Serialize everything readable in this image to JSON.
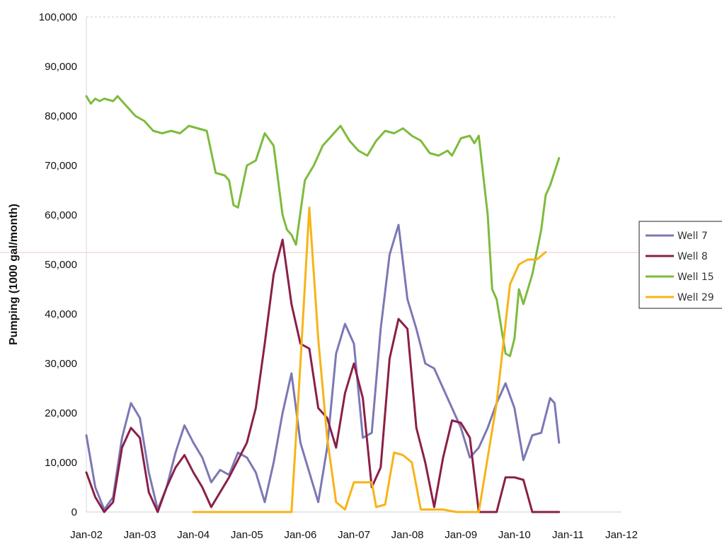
{
  "chart_data": {
    "type": "line",
    "ylabel": "Pumping (1000 gal/month)",
    "xlabel": "",
    "ylim": [
      0,
      100000
    ],
    "yticks": [
      0,
      10000,
      20000,
      30000,
      40000,
      50000,
      60000,
      70000,
      80000,
      90000,
      100000
    ],
    "ytick_labels": [
      "0",
      "10,000",
      "20,000",
      "30,000",
      "40,000",
      "50,000",
      "60,000",
      "70,000",
      "80,000",
      "90,000",
      "100,000"
    ],
    "xlim": [
      "2002-01",
      "2012-01"
    ],
    "xtick_labels": [
      "Jan-02",
      "Jan-03",
      "Jan-04",
      "Jan-05",
      "Jan-06",
      "Jan-07",
      "Jan-08",
      "Jan-09",
      "Jan-10",
      "Jan-11",
      "Jan-12"
    ],
    "grid": false,
    "legend_position": "right",
    "series": [
      {
        "name": "Well 7",
        "color": "#7b78b5",
        "points": [
          [
            "2002-01",
            15500
          ],
          [
            "2002-03",
            5000
          ],
          [
            "2002-05",
            500
          ],
          [
            "2002-07",
            3000
          ],
          [
            "2002-09",
            15000
          ],
          [
            "2002-11",
            22000
          ],
          [
            "2003-01",
            19000
          ],
          [
            "2003-03",
            8000
          ],
          [
            "2003-05",
            500
          ],
          [
            "2003-07",
            5000
          ],
          [
            "2003-09",
            12000
          ],
          [
            "2003-11",
            17500
          ],
          [
            "2004-01",
            14000
          ],
          [
            "2004-03",
            11000
          ],
          [
            "2004-05",
            6000
          ],
          [
            "2004-07",
            8500
          ],
          [
            "2004-09",
            7500
          ],
          [
            "2004-11",
            12000
          ],
          [
            "2005-01",
            11000
          ],
          [
            "2005-03",
            8000
          ],
          [
            "2005-05",
            2000
          ],
          [
            "2005-07",
            10000
          ],
          [
            "2005-09",
            20000
          ],
          [
            "2005-11",
            28000
          ],
          [
            "2006-01",
            14000
          ],
          [
            "2006-03",
            8000
          ],
          [
            "2006-05",
            2000
          ],
          [
            "2006-07",
            13000
          ],
          [
            "2006-09",
            32000
          ],
          [
            "2006-11",
            38000
          ],
          [
            "2007-01",
            34000
          ],
          [
            "2007-03",
            15000
          ],
          [
            "2007-05",
            16000
          ],
          [
            "2007-07",
            37000
          ],
          [
            "2007-09",
            52000
          ],
          [
            "2007-11",
            58000
          ],
          [
            "2008-01",
            43000
          ],
          [
            "2008-03",
            37000
          ],
          [
            "2008-05",
            30000
          ],
          [
            "2008-07",
            29000
          ],
          [
            "2008-09",
            25000
          ],
          [
            "2008-11",
            21000
          ],
          [
            "2009-01",
            17000
          ],
          [
            "2009-03",
            11000
          ],
          [
            "2009-05",
            13000
          ],
          [
            "2009-07",
            17000
          ],
          [
            "2009-09",
            22000
          ],
          [
            "2009-11",
            26000
          ],
          [
            "2010-01",
            21000
          ],
          [
            "2010-03",
            10500
          ],
          [
            "2010-05",
            15500
          ],
          [
            "2010-07",
            16000
          ],
          [
            "2010-09",
            23000
          ],
          [
            "2010-10",
            22000
          ],
          [
            "2010-11",
            14000
          ]
        ]
      },
      {
        "name": "Well 8",
        "color": "#8a1f48",
        "points": [
          [
            "2002-01",
            8000
          ],
          [
            "2002-03",
            3000
          ],
          [
            "2002-05",
            0
          ],
          [
            "2002-07",
            2000
          ],
          [
            "2002-09",
            13000
          ],
          [
            "2002-11",
            17000
          ],
          [
            "2003-01",
            15000
          ],
          [
            "2003-03",
            4000
          ],
          [
            "2003-05",
            0
          ],
          [
            "2003-07",
            5000
          ],
          [
            "2003-09",
            9000
          ],
          [
            "2003-11",
            11500
          ],
          [
            "2004-01",
            8000
          ],
          [
            "2004-03",
            5000
          ],
          [
            "2004-05",
            1000
          ],
          [
            "2004-07",
            4000
          ],
          [
            "2004-09",
            7000
          ],
          [
            "2004-11",
            10500
          ],
          [
            "2005-01",
            14000
          ],
          [
            "2005-03",
            21000
          ],
          [
            "2005-05",
            34000
          ],
          [
            "2005-07",
            48000
          ],
          [
            "2005-09",
            55000
          ],
          [
            "2005-11",
            42000
          ],
          [
            "2006-01",
            34000
          ],
          [
            "2006-03",
            33000
          ],
          [
            "2006-05",
            21000
          ],
          [
            "2006-07",
            19000
          ],
          [
            "2006-09",
            13000
          ],
          [
            "2006-11",
            24000
          ],
          [
            "2007-01",
            30000
          ],
          [
            "2007-03",
            23000
          ],
          [
            "2007-05",
            5000
          ],
          [
            "2007-07",
            9000
          ],
          [
            "2007-09",
            31000
          ],
          [
            "2007-11",
            39000
          ],
          [
            "2008-01",
            37000
          ],
          [
            "2008-03",
            17000
          ],
          [
            "2008-05",
            10000
          ],
          [
            "2008-07",
            1000
          ],
          [
            "2008-09",
            11000
          ],
          [
            "2008-11",
            18500
          ],
          [
            "2009-01",
            18000
          ],
          [
            "2009-03",
            15000
          ],
          [
            "2009-05",
            0
          ],
          [
            "2009-07",
            0
          ],
          [
            "2009-09",
            0
          ],
          [
            "2009-11",
            7000
          ],
          [
            "2010-01",
            7000
          ],
          [
            "2010-03",
            6500
          ],
          [
            "2010-05",
            0
          ],
          [
            "2010-07",
            0
          ],
          [
            "2010-09",
            0
          ],
          [
            "2010-11",
            0
          ]
        ]
      },
      {
        "name": "Well 15",
        "color": "#7dbb3c",
        "points": [
          [
            "2002-01",
            84000
          ],
          [
            "2002-02",
            82500
          ],
          [
            "2002-03",
            83500
          ],
          [
            "2002-04",
            83000
          ],
          [
            "2002-05",
            83500
          ],
          [
            "2002-07",
            83000
          ],
          [
            "2002-08",
            84000
          ],
          [
            "2002-10",
            82000
          ],
          [
            "2002-12",
            80000
          ],
          [
            "2003-02",
            79000
          ],
          [
            "2003-04",
            77000
          ],
          [
            "2003-06",
            76500
          ],
          [
            "2003-08",
            77000
          ],
          [
            "2003-10",
            76500
          ],
          [
            "2003-12",
            78000
          ],
          [
            "2004-02",
            77500
          ],
          [
            "2004-04",
            77000
          ],
          [
            "2004-06",
            68500
          ],
          [
            "2004-08",
            68000
          ],
          [
            "2004-09",
            67000
          ],
          [
            "2004-10",
            62000
          ],
          [
            "2004-11",
            61500
          ],
          [
            "2005-01",
            70000
          ],
          [
            "2005-03",
            71000
          ],
          [
            "2005-05",
            76500
          ],
          [
            "2005-07",
            74000
          ],
          [
            "2005-09",
            60000
          ],
          [
            "2005-10",
            57000
          ],
          [
            "2005-11",
            56000
          ],
          [
            "2005-12",
            54000
          ],
          [
            "2006-02",
            67000
          ],
          [
            "2006-04",
            70000
          ],
          [
            "2006-06",
            74000
          ],
          [
            "2006-08",
            76000
          ],
          [
            "2006-10",
            78000
          ],
          [
            "2006-12",
            75000
          ],
          [
            "2007-02",
            73000
          ],
          [
            "2007-04",
            72000
          ],
          [
            "2007-06",
            75000
          ],
          [
            "2007-08",
            77000
          ],
          [
            "2007-10",
            76500
          ],
          [
            "2007-12",
            77500
          ],
          [
            "2008-02",
            76000
          ],
          [
            "2008-04",
            75000
          ],
          [
            "2008-06",
            72500
          ],
          [
            "2008-08",
            72000
          ],
          [
            "2008-10",
            73000
          ],
          [
            "2008-11",
            72000
          ],
          [
            "2009-01",
            75500
          ],
          [
            "2009-03",
            76000
          ],
          [
            "2009-04",
            74500
          ],
          [
            "2009-05",
            76000
          ],
          [
            "2009-07",
            60000
          ],
          [
            "2009-08",
            45000
          ],
          [
            "2009-09",
            43000
          ],
          [
            "2009-11",
            32000
          ],
          [
            "2009-12",
            31500
          ],
          [
            "2010-01",
            35000
          ],
          [
            "2010-02",
            45000
          ],
          [
            "2010-03",
            42000
          ],
          [
            "2010-05",
            48000
          ],
          [
            "2010-07",
            57000
          ],
          [
            "2010-08",
            64000
          ],
          [
            "2010-09",
            66000
          ],
          [
            "2010-11",
            71500
          ]
        ]
      },
      {
        "name": "Well 29",
        "color": "#f7b417",
        "points": [
          [
            "2004-01",
            0
          ],
          [
            "2004-09",
            0
          ],
          [
            "2005-06",
            0
          ],
          [
            "2005-11",
            0
          ],
          [
            "2006-01",
            30000
          ],
          [
            "2006-03",
            61500
          ],
          [
            "2006-05",
            35000
          ],
          [
            "2006-07",
            15000
          ],
          [
            "2006-09",
            2000
          ],
          [
            "2006-11",
            500
          ],
          [
            "2007-01",
            6000
          ],
          [
            "2007-03",
            6000
          ],
          [
            "2007-05",
            6000
          ],
          [
            "2007-06",
            1000
          ],
          [
            "2007-08",
            1500
          ],
          [
            "2007-10",
            12000
          ],
          [
            "2007-12",
            11500
          ],
          [
            "2008-02",
            10000
          ],
          [
            "2008-04",
            500
          ],
          [
            "2008-06",
            500
          ],
          [
            "2008-09",
            500
          ],
          [
            "2008-12",
            0
          ],
          [
            "2009-05",
            0
          ],
          [
            "2009-09",
            22000
          ],
          [
            "2009-12",
            46000
          ],
          [
            "2010-02",
            50000
          ],
          [
            "2010-04",
            51000
          ],
          [
            "2010-06",
            51000
          ],
          [
            "2010-08",
            52500
          ]
        ]
      }
    ]
  }
}
